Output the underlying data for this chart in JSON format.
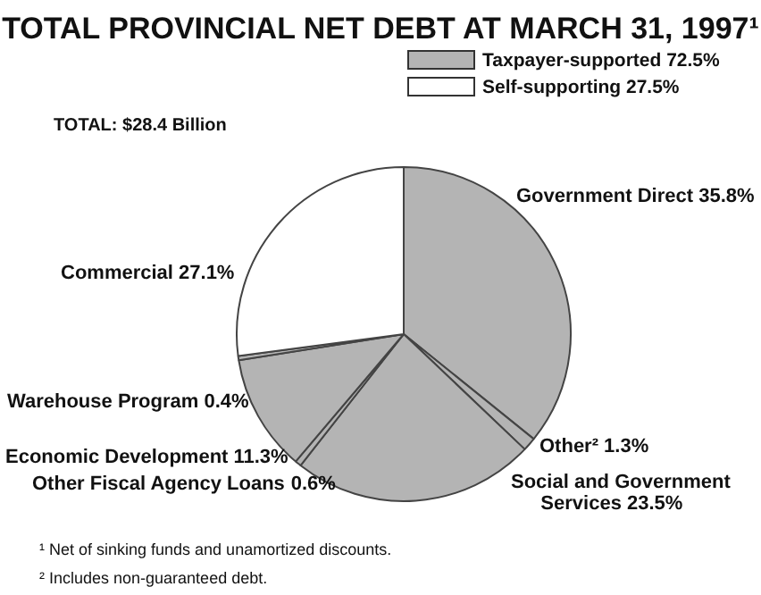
{
  "chart_data": {
    "type": "pie",
    "title": "TOTAL PROVINCIAL NET DEBT AT MARCH 31, 1997¹",
    "categories": [
      "Government Direct",
      "Other²",
      "Social and Government Services",
      "Other Fiscal Agency Loans",
      "Economic Development",
      "Warehouse Program",
      "Commercial"
    ],
    "values": [
      35.8,
      1.3,
      23.5,
      0.6,
      11.3,
      0.4,
      27.1
    ],
    "colors": [
      "#b4b4b4",
      "#b4b4b4",
      "#b4b4b4",
      "#b4b4b4",
      "#b4b4b4",
      "#b4b4b4",
      "#ffffff"
    ],
    "value_labels": [
      "35.8%",
      "1.3%",
      "23.5%",
      "0.6%",
      "11.3%",
      "0.4%",
      "27.1%"
    ],
    "annotations": [
      "TOTAL: $28.4 Billion",
      "Taxpayer-supported 72.5%",
      "Self-supporting 27.5%",
      "¹ Net of sinking funds and unamortized discounts.",
      "² Includes non-guaranteed debt."
    ]
  }
}
